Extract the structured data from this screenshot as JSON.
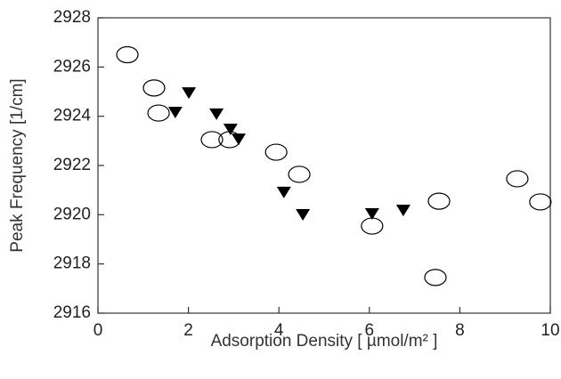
{
  "chart_data": {
    "type": "scatter",
    "xlabel": "Adsorption Density [ µmol/m² ]",
    "ylabel": "Peak Frequency [1/cm]",
    "xlim": [
      0,
      10
    ],
    "xticks": [
      0,
      2,
      4,
      6,
      8,
      10
    ],
    "ylim": [
      2916,
      2928
    ],
    "yticks": [
      2916,
      2918,
      2920,
      2922,
      2924,
      2926,
      2928
    ],
    "grid": false,
    "series": [
      {
        "marker": "open-circle",
        "color": "#000000",
        "x": [
          0.65,
          1.24,
          1.34,
          2.52,
          2.91,
          3.94,
          4.45,
          6.06,
          7.54,
          7.46,
          9.27,
          9.78
        ],
        "values": [
          2926.5,
          2925.15,
          2924.13,
          2923.05,
          2923.05,
          2922.54,
          2921.64,
          2919.54,
          2920.55,
          2917.45,
          2921.46,
          2920.52
        ]
      },
      {
        "marker": "filled-triangle-down",
        "color": "#000000",
        "x": [
          2.01,
          1.71,
          2.62,
          2.93,
          3.11,
          4.11,
          4.53,
          6.06,
          6.75
        ],
        "values": [
          2924.96,
          2924.17,
          2924.1,
          2923.48,
          2923.08,
          2920.92,
          2920.01,
          2920.05,
          2920.19
        ]
      }
    ]
  }
}
